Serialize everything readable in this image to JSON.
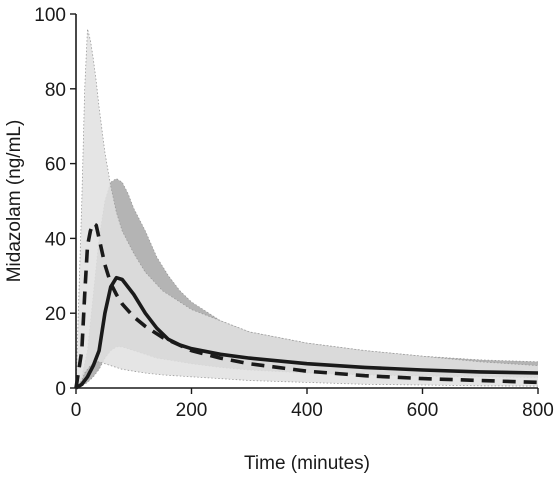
{
  "chart_data": {
    "type": "line",
    "title": "",
    "xlabel": "Time (minutes)",
    "ylabel": "Midazolam (ng/mL)",
    "xlim": [
      0,
      800
    ],
    "ylim": [
      0,
      100
    ],
    "xticks": [
      0,
      200,
      400,
      600,
      800
    ],
    "yticks": [
      0,
      20,
      40,
      60,
      80,
      100
    ],
    "grid": false,
    "legend": "none",
    "colors": {
      "solid_band": "#b4b4b4",
      "dashed_band": "#e0e0e0",
      "solid_line": "#1a1a1a",
      "dashed_line": "#1a1a1a",
      "band_edge": "#9a9a9a"
    },
    "series": [
      {
        "style": "solid",
        "x": [
          0,
          10,
          20,
          30,
          40,
          50,
          60,
          70,
          80,
          90,
          100,
          120,
          140,
          160,
          180,
          200,
          250,
          300,
          400,
          500,
          600,
          700,
          800
        ],
        "values": [
          0,
          1,
          3,
          6,
          10,
          20,
          27,
          29.5,
          29,
          27,
          25,
          20,
          16,
          13,
          11.5,
          10.5,
          9,
          8,
          6.5,
          5.5,
          4.8,
          4.3,
          4
        ],
        "band_low": [
          0,
          0.5,
          1.5,
          3,
          5,
          8,
          10,
          11,
          11,
          10.5,
          10,
          9,
          8,
          7.5,
          7,
          6.5,
          5.5,
          4.8,
          4,
          3.5,
          3.2,
          3,
          2.8
        ],
        "band_high": [
          0,
          3,
          10,
          25,
          40,
          50,
          55,
          56,
          55,
          52,
          48,
          42,
          35,
          30,
          26,
          23,
          18,
          15,
          12,
          10,
          8.5,
          7.5,
          7
        ]
      },
      {
        "style": "dashed",
        "x": [
          0,
          10,
          15,
          20,
          25,
          30,
          35,
          40,
          50,
          60,
          70,
          80,
          100,
          120,
          150,
          200,
          250,
          300,
          400,
          500,
          600,
          700,
          800
        ],
        "values": [
          0,
          10,
          25,
          38,
          42,
          44,
          43.5,
          40,
          33,
          28,
          25,
          22.5,
          19,
          16.5,
          13.5,
          10,
          8,
          6.5,
          4.5,
          3.3,
          2.5,
          2,
          1.5
        ],
        "band_low": [
          0,
          2,
          4,
          5,
          6,
          6.5,
          7,
          7,
          6.5,
          6,
          5.5,
          5,
          4.5,
          4,
          3.5,
          3,
          2.5,
          2,
          1.5,
          1,
          0.8,
          0.6,
          0.5
        ],
        "band_high": [
          0,
          50,
          80,
          96,
          93,
          88,
          82,
          75,
          63,
          54,
          47,
          42,
          36,
          31,
          26,
          21,
          18,
          15,
          12,
          10,
          8.5,
          7,
          6
        ]
      }
    ]
  }
}
